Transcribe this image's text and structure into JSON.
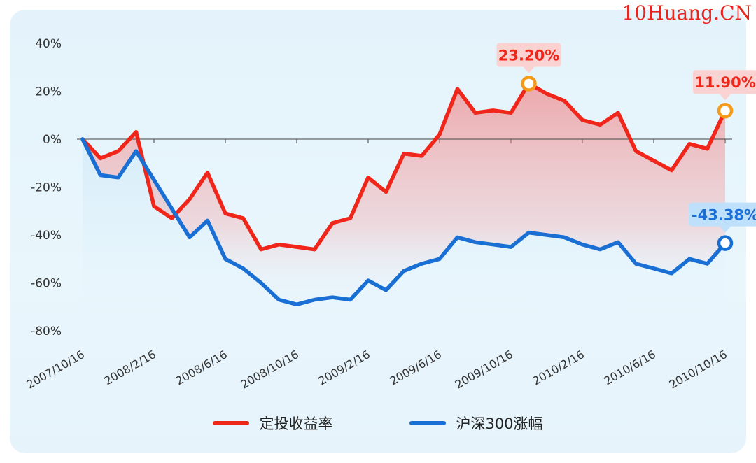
{
  "watermark": "10Huang.CN",
  "colors": {
    "red": "#f0261a",
    "blue": "#1a6fd4",
    "orange": "#f59a1a"
  },
  "chart_data": {
    "type": "line",
    "x": [
      "2007/10/16",
      "2007/11/16",
      "2007/12/16",
      "2008/1/16",
      "2008/2/16",
      "2008/3/16",
      "2008/4/16",
      "2008/5/16",
      "2008/6/16",
      "2008/7/16",
      "2008/8/16",
      "2008/9/16",
      "2008/10/16",
      "2008/11/16",
      "2008/12/16",
      "2009/1/16",
      "2009/2/16",
      "2009/3/16",
      "2009/4/16",
      "2009/5/16",
      "2009/6/16",
      "2009/7/16",
      "2009/8/16",
      "2009/9/16",
      "2009/10/16",
      "2009/11/16",
      "2009/12/16",
      "2010/1/16",
      "2010/2/16",
      "2010/3/16",
      "2010/4/16",
      "2010/5/16",
      "2010/6/16",
      "2010/7/16",
      "2010/8/16",
      "2010/9/16",
      "2010/10/16"
    ],
    "x_tick_labels": [
      "2007/10/16",
      "2008/2/16",
      "2008/6/16",
      "2008/10/16",
      "2009/2/16",
      "2009/6/16",
      "2009/10/16",
      "2010/2/16",
      "2010/6/16",
      "2010/10/16"
    ],
    "series": [
      {
        "name": "定投收益率",
        "color": "#f0261a",
        "values": [
          0,
          -8,
          -5,
          3,
          -28,
          -33,
          -25,
          -14,
          -31,
          -33,
          -46,
          -44,
          -45,
          -46,
          -35,
          -33,
          -16,
          -22,
          -6,
          -7,
          2,
          21,
          11,
          12,
          11,
          23.2,
          19,
          16,
          8,
          6,
          11,
          -5,
          -9,
          -13,
          -2,
          -4,
          11.9
        ]
      },
      {
        "name": "沪深300涨幅",
        "color": "#1a6fd4",
        "values": [
          0,
          -15,
          -16,
          -5,
          -17,
          -29,
          -41,
          -34,
          -50,
          -54,
          -60,
          -67,
          -69,
          -67,
          -66,
          -67,
          -59,
          -63,
          -55,
          -52,
          -50,
          -41,
          -43,
          -44,
          -45,
          -39,
          -40,
          -41,
          -44,
          -46,
          -43,
          -52,
          -54,
          -56,
          -50,
          -52,
          -43.38
        ]
      }
    ],
    "y_tick_labels": [
      "40%",
      "20%",
      "0%",
      "-20%",
      "-40%",
      "-60%",
      "-80%"
    ],
    "ylim": [
      -80,
      40
    ],
    "annotations": [
      {
        "label": "23.20%",
        "series": 0,
        "index": 25
      },
      {
        "label": "11.90%",
        "series": 0,
        "index": 36
      },
      {
        "label": "-43.38%",
        "series": 1,
        "index": 36
      }
    ],
    "legend_position": "bottom-center",
    "grid": false
  }
}
